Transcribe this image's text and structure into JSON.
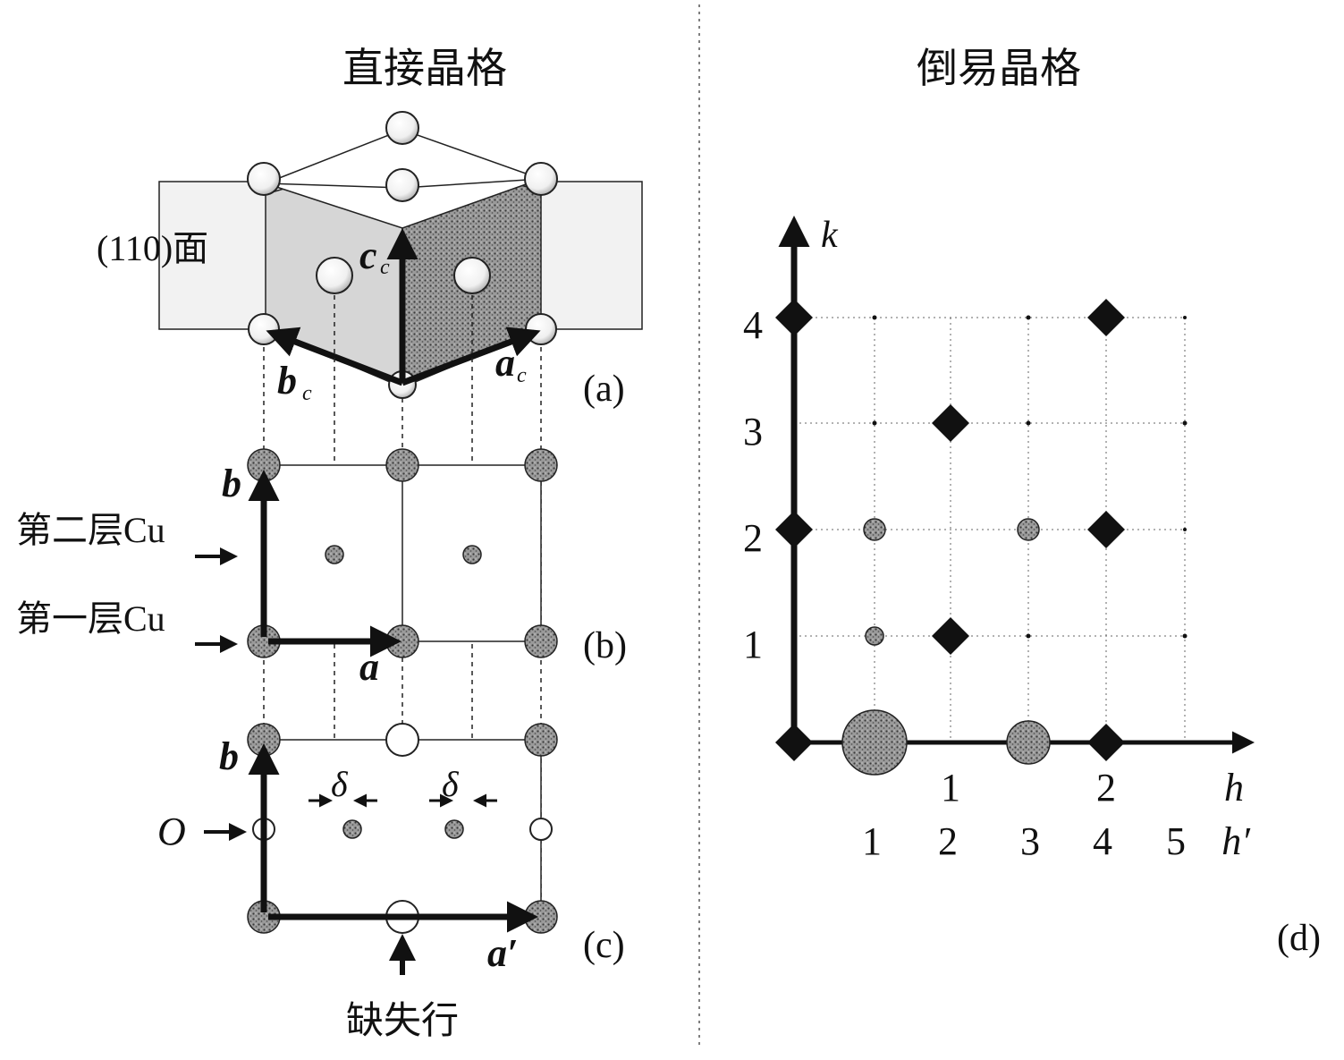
{
  "titles": {
    "direct": "直接晶格",
    "reciprocal": "倒易晶格"
  },
  "panel_a": {
    "plane_label": "(110)面",
    "vec_c": "c",
    "vec_b": "b",
    "vec_a": "a",
    "sub_c": "c",
    "tag": "(a)"
  },
  "panel_b": {
    "layer2": "第二层Cu",
    "layer1": "第一层Cu",
    "vec_b": "b",
    "vec_a": "a",
    "tag": "(b)"
  },
  "panel_c": {
    "vec_b": "b",
    "vec_a": "a′",
    "delta": "δ",
    "oxygen": "O",
    "missing_row": "缺失行",
    "tag": "(c)"
  },
  "panel_d": {
    "tag": "(d)",
    "k_axis": "k",
    "h_axis": "h",
    "hp_axis": "h′",
    "k_ticks": [
      "1",
      "2",
      "3",
      "4"
    ],
    "h_ticks": [
      "1",
      "2"
    ],
    "hp_ticks": [
      "1",
      "2",
      "3",
      "4",
      "5"
    ]
  },
  "colors": {
    "ink": "#111111",
    "dot_fill": "#8a8a8a",
    "face_light": "#d4d4d4",
    "face_dark": "#6e6e6e"
  }
}
